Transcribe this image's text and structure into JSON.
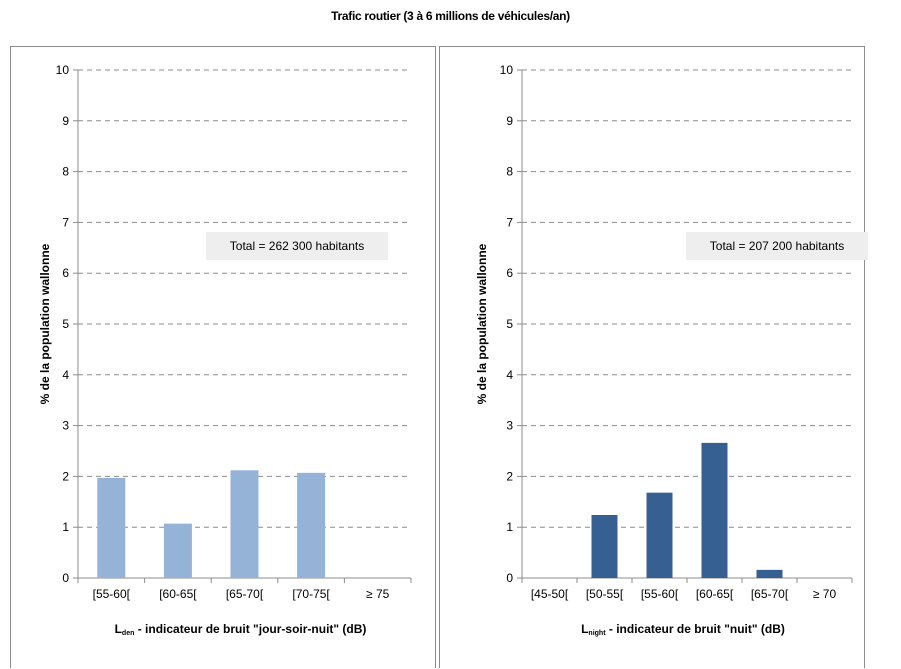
{
  "title": "Trafic routier (3 à 6 millions de véhicules/an)",
  "chart_data": [
    {
      "type": "bar",
      "categories": [
        "[55-60[",
        "[60-65[",
        "[65-70[",
        "[70-75[",
        "≥ 75"
      ],
      "values": [
        1.97,
        1.07,
        2.12,
        2.07,
        0
      ],
      "ylabel": "% de la population wallonne",
      "xlabel_main": "L",
      "xlabel_sub": "den",
      "xlabel_rest": " - indicateur de bruit \"jour-soir-nuit\" (dB)",
      "ylim": [
        0,
        10
      ],
      "yticks": [
        0,
        1,
        2,
        3,
        4,
        5,
        6,
        7,
        8,
        9,
        10
      ],
      "grid": true,
      "annotation": "Total = 262 300 habitants",
      "color": "#95b3d7"
    },
    {
      "type": "bar",
      "categories": [
        "[45-50[",
        "[50-55[",
        "[55-60[",
        "[60-65[",
        "[65-70[",
        "≥ 70"
      ],
      "values": [
        0,
        1.24,
        1.68,
        2.66,
        0.16,
        0
      ],
      "ylabel": "% de la population wallonne",
      "xlabel_main": "L",
      "xlabel_sub": "night",
      "xlabel_rest": " - indicateur de bruit \"nuit\" (dB)",
      "ylim": [
        0,
        10
      ],
      "yticks": [
        0,
        1,
        2,
        3,
        4,
        5,
        6,
        7,
        8,
        9,
        10
      ],
      "grid": true,
      "annotation": "Total = 207 200 habitants",
      "color": "#376092"
    }
  ]
}
